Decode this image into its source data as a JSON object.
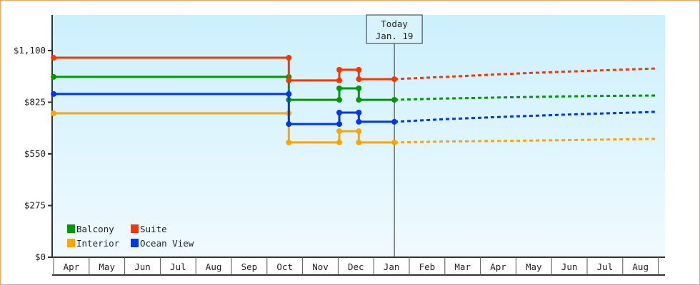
{
  "chart_data": {
    "type": "line",
    "step": true,
    "title": "",
    "xlabel": "",
    "ylabel": "",
    "ylim": [
      0,
      1150
    ],
    "y_ticks": [
      {
        "value": 0,
        "label": "$0"
      },
      {
        "value": 275,
        "label": "$275"
      },
      {
        "value": 550,
        "label": "$550"
      },
      {
        "value": 825,
        "label": "$825"
      },
      {
        "value": 1100,
        "label": "$1,100"
      }
    ],
    "months": [
      "Apr",
      "May",
      "Jun",
      "Jul",
      "Aug",
      "Sep",
      "Oct",
      "Nov",
      "Dec",
      "Jan",
      "Feb",
      "Mar",
      "Apr",
      "May",
      "Jun",
      "Jul",
      "Aug"
    ],
    "today": {
      "line1": "Today",
      "line2": "Jan. 19",
      "month_index": 9,
      "day": 19
    },
    "legend_placement": "bottom-left",
    "grid": false,
    "series": [
      {
        "name": "Balcony",
        "color": "#009900",
        "history": [
          [
            0,
            1,
            960
          ],
          [
            6,
            20,
            960
          ],
          [
            6,
            20,
            838
          ],
          [
            8,
            2,
            838
          ],
          [
            8,
            2,
            899
          ],
          [
            8,
            19,
            899
          ],
          [
            8,
            19,
            838
          ],
          [
            9,
            19,
            838
          ]
        ],
        "forecast": [
          [
            9,
            19,
            838
          ],
          [
            11,
            1,
            845
          ],
          [
            13,
            1,
            852
          ],
          [
            15,
            1,
            858
          ],
          [
            16,
            31,
            861
          ]
        ]
      },
      {
        "name": "Suite",
        "color": "#ff3300",
        "history": [
          [
            0,
            1,
            1062
          ],
          [
            6,
            20,
            1062
          ],
          [
            6,
            20,
            941
          ],
          [
            8,
            2,
            941
          ],
          [
            8,
            2,
            998
          ],
          [
            8,
            19,
            998
          ],
          [
            8,
            19,
            948
          ],
          [
            9,
            19,
            948
          ]
        ],
        "forecast": [
          [
            9,
            19,
            948
          ],
          [
            11,
            1,
            960
          ],
          [
            13,
            1,
            978
          ],
          [
            15,
            1,
            992
          ],
          [
            16,
            31,
            1005
          ]
        ]
      },
      {
        "name": "Interior",
        "color": "#ffa500",
        "history": [
          [
            0,
            1,
            766
          ],
          [
            6,
            20,
            766
          ],
          [
            6,
            20,
            611
          ],
          [
            8,
            2,
            611
          ],
          [
            8,
            2,
            671
          ],
          [
            8,
            19,
            671
          ],
          [
            8,
            19,
            611
          ],
          [
            9,
            19,
            611
          ]
        ],
        "forecast": [
          [
            9,
            19,
            611
          ],
          [
            11,
            1,
            616
          ],
          [
            13,
            1,
            620
          ],
          [
            15,
            1,
            625
          ],
          [
            16,
            31,
            630
          ]
        ]
      },
      {
        "name": "Ocean View",
        "color": "#0033ff",
        "history": [
          [
            0,
            1,
            869
          ],
          [
            6,
            20,
            869
          ],
          [
            6,
            20,
            709
          ],
          [
            8,
            2,
            709
          ],
          [
            8,
            2,
            770
          ],
          [
            8,
            19,
            770
          ],
          [
            8,
            19,
            721
          ],
          [
            9,
            19,
            721
          ]
        ],
        "forecast": [
          [
            9,
            19,
            721
          ],
          [
            11,
            1,
            735
          ],
          [
            13,
            1,
            750
          ],
          [
            15,
            1,
            763
          ],
          [
            16,
            31,
            774
          ]
        ]
      }
    ]
  }
}
